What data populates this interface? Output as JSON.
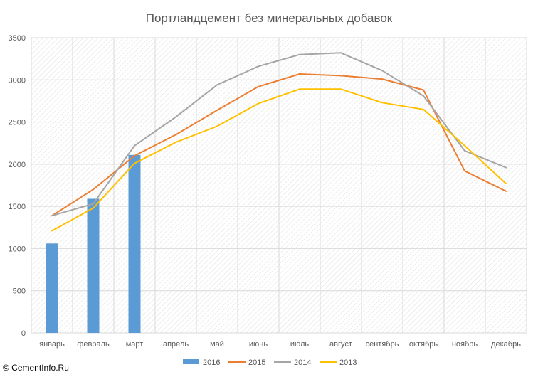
{
  "copyright": "© CementInfo.Ru",
  "chart_data": {
    "type": "bar",
    "title": "Портландцемент без минеральных добавок",
    "xlabel": "",
    "ylabel": "",
    "ylim": [
      0,
      3500
    ],
    "yticks": [
      0,
      500,
      1000,
      1500,
      2000,
      2500,
      3000,
      3500
    ],
    "categories": [
      "январь",
      "февраль",
      "март",
      "апрель",
      "май",
      "июнь",
      "июль",
      "август",
      "сентябрь",
      "октябрь",
      "ноябрь",
      "декабрь"
    ],
    "grid": true,
    "legend_position": "bottom",
    "series": [
      {
        "name": "2016",
        "kind": "bar",
        "color": "#5b9bd5",
        "values": [
          1060,
          1590,
          2110,
          null,
          null,
          null,
          null,
          null,
          null,
          null,
          null,
          null
        ]
      },
      {
        "name": "2015",
        "kind": "line",
        "color": "#ed7d31",
        "values": [
          1390,
          1700,
          2100,
          2350,
          2640,
          2920,
          3070,
          3050,
          3010,
          2880,
          1920,
          1680
        ]
      },
      {
        "name": "2014",
        "kind": "line",
        "color": "#a5a5a5",
        "values": [
          1390,
          1530,
          2220,
          2560,
          2940,
          3160,
          3300,
          3320,
          3110,
          2810,
          2160,
          1960
        ]
      },
      {
        "name": "2013",
        "kind": "line",
        "color": "#ffc000",
        "values": [
          1210,
          1480,
          2010,
          2260,
          2450,
          2720,
          2890,
          2890,
          2730,
          2650,
          2220,
          1770
        ]
      }
    ]
  }
}
